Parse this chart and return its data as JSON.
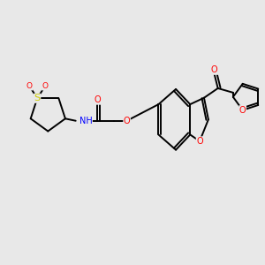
{
  "bg_color": "#e8e8e8",
  "bond_width": 1.4,
  "atom_colors": {
    "O": "#ff0000",
    "N": "#0000ff",
    "S": "#cccc00",
    "C": "#000000"
  },
  "font_size": 7.0,
  "fig_width": 3.0,
  "fig_height": 3.0,
  "xlim": [
    0,
    6.0
  ],
  "ylim": [
    0,
    6.0
  ]
}
